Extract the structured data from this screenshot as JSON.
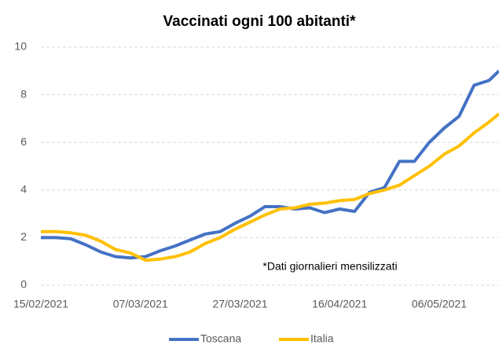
{
  "chart_data": {
    "type": "line",
    "title": "Vaccinati ogni 100 abitanti*",
    "annotation": "*Dati giornalieri mensilizzati",
    "x": [
      "15/02/2021",
      "18/02/2021",
      "21/02/2021",
      "24/02/2021",
      "27/02/2021",
      "02/03/2021",
      "05/03/2021",
      "08/03/2021",
      "11/03/2021",
      "14/03/2021",
      "17/03/2021",
      "20/03/2021",
      "23/03/2021",
      "26/03/2021",
      "29/03/2021",
      "01/04/2021",
      "04/04/2021",
      "07/04/2021",
      "10/04/2021",
      "13/04/2021",
      "16/04/2021",
      "19/04/2021",
      "22/04/2021",
      "25/04/2021",
      "28/04/2021",
      "01/05/2021",
      "04/05/2021",
      "07/05/2021",
      "10/05/2021",
      "13/05/2021",
      "16/05/2021",
      "18/05/2021"
    ],
    "series": [
      {
        "name": "Toscana",
        "color": "#4472c4",
        "values": [
          2.0,
          2.0,
          1.95,
          1.7,
          1.4,
          1.2,
          1.15,
          1.2,
          1.45,
          1.65,
          1.9,
          2.15,
          2.25,
          2.6,
          2.9,
          3.3,
          3.3,
          3.2,
          3.25,
          3.05,
          3.2,
          3.1,
          3.9,
          4.1,
          5.2,
          5.2,
          6.0,
          6.6,
          7.1,
          8.4,
          8.6,
          9.0
        ]
      },
      {
        "name": "Italia",
        "color": "#ffc000",
        "values": [
          2.25,
          2.25,
          2.2,
          2.1,
          1.85,
          1.5,
          1.35,
          1.05,
          1.1,
          1.2,
          1.4,
          1.75,
          2.0,
          2.35,
          2.65,
          2.95,
          3.2,
          3.25,
          3.4,
          3.45,
          3.55,
          3.6,
          3.85,
          4.0,
          4.2,
          4.6,
          5.0,
          5.5,
          5.85,
          6.4,
          6.85,
          7.2
        ]
      }
    ],
    "xlim": [
      "15/02/2021",
      "18/05/2021"
    ],
    "xticks": [
      "15/02/2021",
      "07/03/2021",
      "27/03/2021",
      "16/04/2021",
      "06/05/2021"
    ],
    "ylim": [
      0,
      10
    ],
    "yticks": [
      0,
      2,
      4,
      6,
      8,
      10
    ],
    "grid": true,
    "legend": "bottom"
  }
}
